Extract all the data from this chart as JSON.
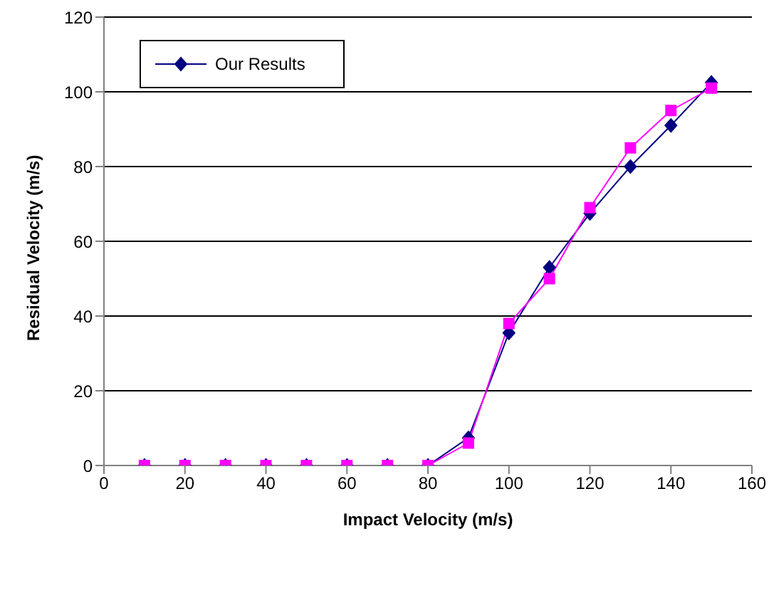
{
  "chart_data": {
    "type": "line",
    "xlabel": "Impact Velocity (m/s)",
    "ylabel": "Residual Velocity (m/s)",
    "x": [
      10,
      20,
      30,
      40,
      50,
      60,
      70,
      80,
      90,
      100,
      110,
      120,
      130,
      140,
      150
    ],
    "series": [
      {
        "name": "Our Results",
        "color": "#000080",
        "marker": "diamond",
        "values": [
          0,
          0,
          0,
          0,
          0,
          0,
          0,
          0,
          7.4,
          35.5,
          53,
          67.5,
          80,
          91,
          102.5
        ]
      },
      {
        "color": "#ff00ff",
        "marker": "square",
        "values": [
          0,
          0,
          0,
          0,
          0,
          0,
          0,
          0,
          6,
          38,
          50,
          69,
          85,
          95,
          101
        ]
      }
    ],
    "xlim": [
      0,
      160
    ],
    "xticks": [
      0,
      20,
      40,
      60,
      80,
      100,
      120,
      140,
      160
    ],
    "ylim": [
      0,
      120
    ],
    "yticks": [
      0,
      20,
      40,
      60,
      80,
      100,
      120
    ],
    "grid": "y",
    "legend": "top left",
    "line_style": "solid"
  }
}
